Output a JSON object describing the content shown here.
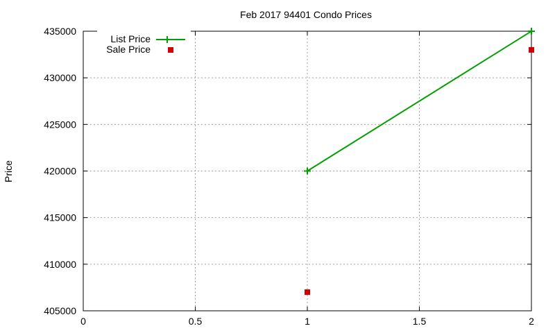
{
  "chart_data": {
    "type": "line",
    "title": "Feb 2017 94401 Condo Prices",
    "xlabel": "",
    "ylabel": "Price",
    "xlim": [
      0,
      2
    ],
    "ylim": [
      405000,
      435000
    ],
    "x_ticks": [
      "0",
      "0.5",
      "1",
      "1.5",
      "2"
    ],
    "y_ticks": [
      "405000",
      "410000",
      "415000",
      "420000",
      "425000",
      "430000",
      "435000"
    ],
    "grid": true,
    "legend_position": "top-left",
    "series": [
      {
        "name": "List Price",
        "style": "line+points",
        "color": "#00a000",
        "x": [
          1,
          2
        ],
        "values": [
          420000,
          435000
        ]
      },
      {
        "name": "Sale Price",
        "style": "points",
        "color": "#cc0000",
        "x": [
          1,
          2
        ],
        "values": [
          407000,
          433000
        ]
      }
    ]
  }
}
